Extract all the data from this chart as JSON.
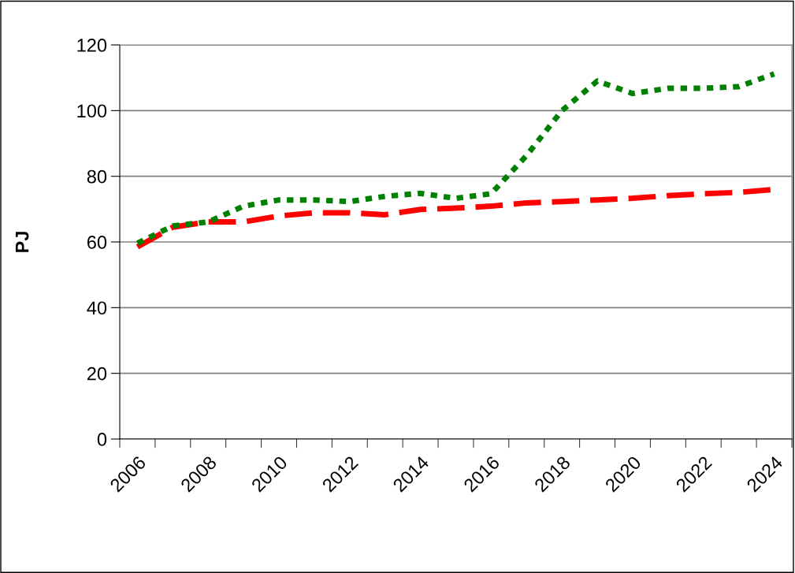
{
  "chart_data": {
    "type": "line",
    "ylabel": "PJ",
    "categories": [
      "2006",
      null,
      "2008",
      null,
      "2010",
      null,
      "2012",
      null,
      "2014",
      null,
      "2016",
      null,
      "2018",
      null,
      "2020",
      null,
      "2022",
      null,
      "2024"
    ],
    "series": [
      {
        "color": "#ff0000",
        "line_style": "dashed",
        "values": [
          58.5,
          64.5,
          66.1,
          66.1,
          67.9,
          68.9,
          68.9,
          68.3,
          69.9,
          70.3,
          70.9,
          71.9,
          72.3,
          72.8,
          73.3,
          74.1,
          74.7,
          75.1,
          76.0
        ]
      },
      {
        "color": "#008000",
        "line_style": "dotted",
        "values": [
          59.6,
          64.9,
          66.1,
          70.9,
          72.8,
          72.8,
          72.3,
          73.9,
          74.8,
          73.3,
          74.7,
          86.3,
          100.0,
          109.0,
          105.2,
          106.8,
          106.8,
          107.3,
          111.2
        ]
      }
    ],
    "ylim": [
      0,
      120
    ],
    "yticks": [
      0,
      20,
      40,
      60,
      80,
      100,
      120
    ],
    "grid": "y"
  }
}
